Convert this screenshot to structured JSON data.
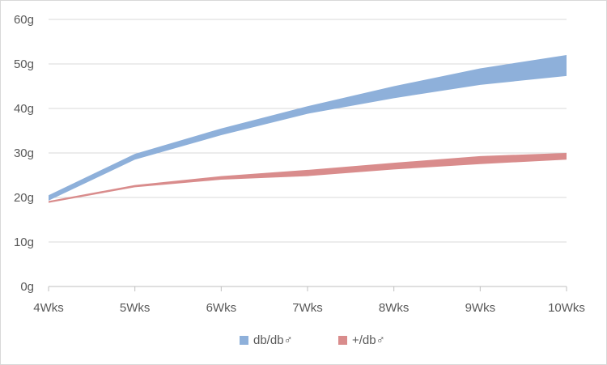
{
  "chart_data": {
    "type": "area",
    "categories": [
      "4Wks",
      "5Wks",
      "6Wks",
      "7Wks",
      "8Wks",
      "9Wks",
      "10Wks"
    ],
    "ylim": [
      0,
      60
    ],
    "yticks": [
      0,
      10,
      20,
      30,
      40,
      50,
      60
    ],
    "ytick_labels": [
      "0g",
      "10g",
      "20g",
      "30g",
      "40g",
      "50g",
      "60g"
    ],
    "grid": "horizontal",
    "legend_position": "bottom",
    "series": [
      {
        "name": "db/db♂",
        "color": "#8eb0da",
        "lower": [
          19.3,
          28.5,
          34.0,
          38.8,
          42.3,
          45.3,
          47.3
        ],
        "upper": [
          20.5,
          29.8,
          35.5,
          40.5,
          45.0,
          49.0,
          52.0
        ]
      },
      {
        "name": "+/db♂",
        "color": "#d98c8c",
        "lower": [
          18.8,
          22.3,
          24.0,
          24.8,
          26.3,
          27.5,
          28.5
        ],
        "upper": [
          19.2,
          22.8,
          24.8,
          26.2,
          27.8,
          29.3,
          30.0
        ]
      }
    ]
  }
}
